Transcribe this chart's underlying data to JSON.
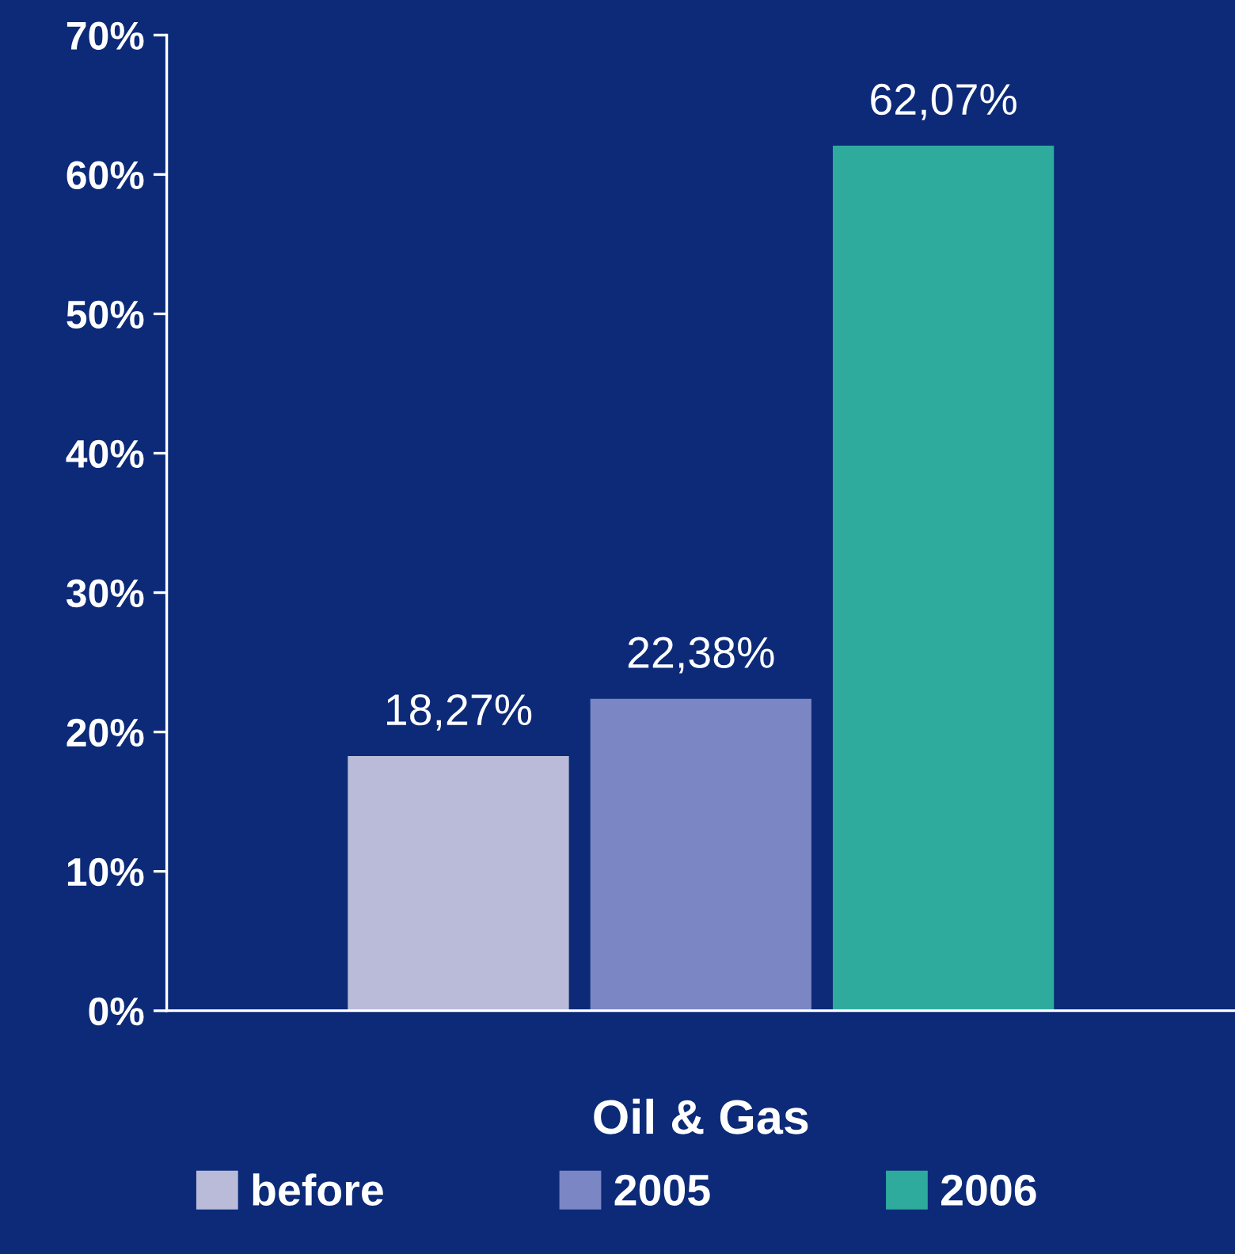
{
  "chart_data": {
    "type": "bar",
    "categories": [
      "Oil & Gas"
    ],
    "series": [
      {
        "name": "before",
        "color": "#b9bbd8",
        "values": [
          18.27
        ],
        "value_labels": [
          "18,27%"
        ]
      },
      {
        "name": "2005",
        "color": "#7b86c4",
        "values": [
          22.38
        ],
        "value_labels": [
          "22,38%"
        ]
      },
      {
        "name": "2006",
        "color": "#2eab9c",
        "values": [
          62.07
        ],
        "value_labels": [
          "62,07%"
        ]
      }
    ],
    "ylim": [
      0,
      70
    ],
    "yticks": [
      {
        "value": 0,
        "label": "0%"
      },
      {
        "value": 10,
        "label": "10%"
      },
      {
        "value": 20,
        "label": "20%"
      },
      {
        "value": 30,
        "label": "30%"
      },
      {
        "value": 40,
        "label": "40%"
      },
      {
        "value": 50,
        "label": "50%"
      },
      {
        "value": 60,
        "label": "60%"
      },
      {
        "value": 70,
        "label": "70%"
      }
    ],
    "grid": false,
    "legend": "bottom"
  }
}
